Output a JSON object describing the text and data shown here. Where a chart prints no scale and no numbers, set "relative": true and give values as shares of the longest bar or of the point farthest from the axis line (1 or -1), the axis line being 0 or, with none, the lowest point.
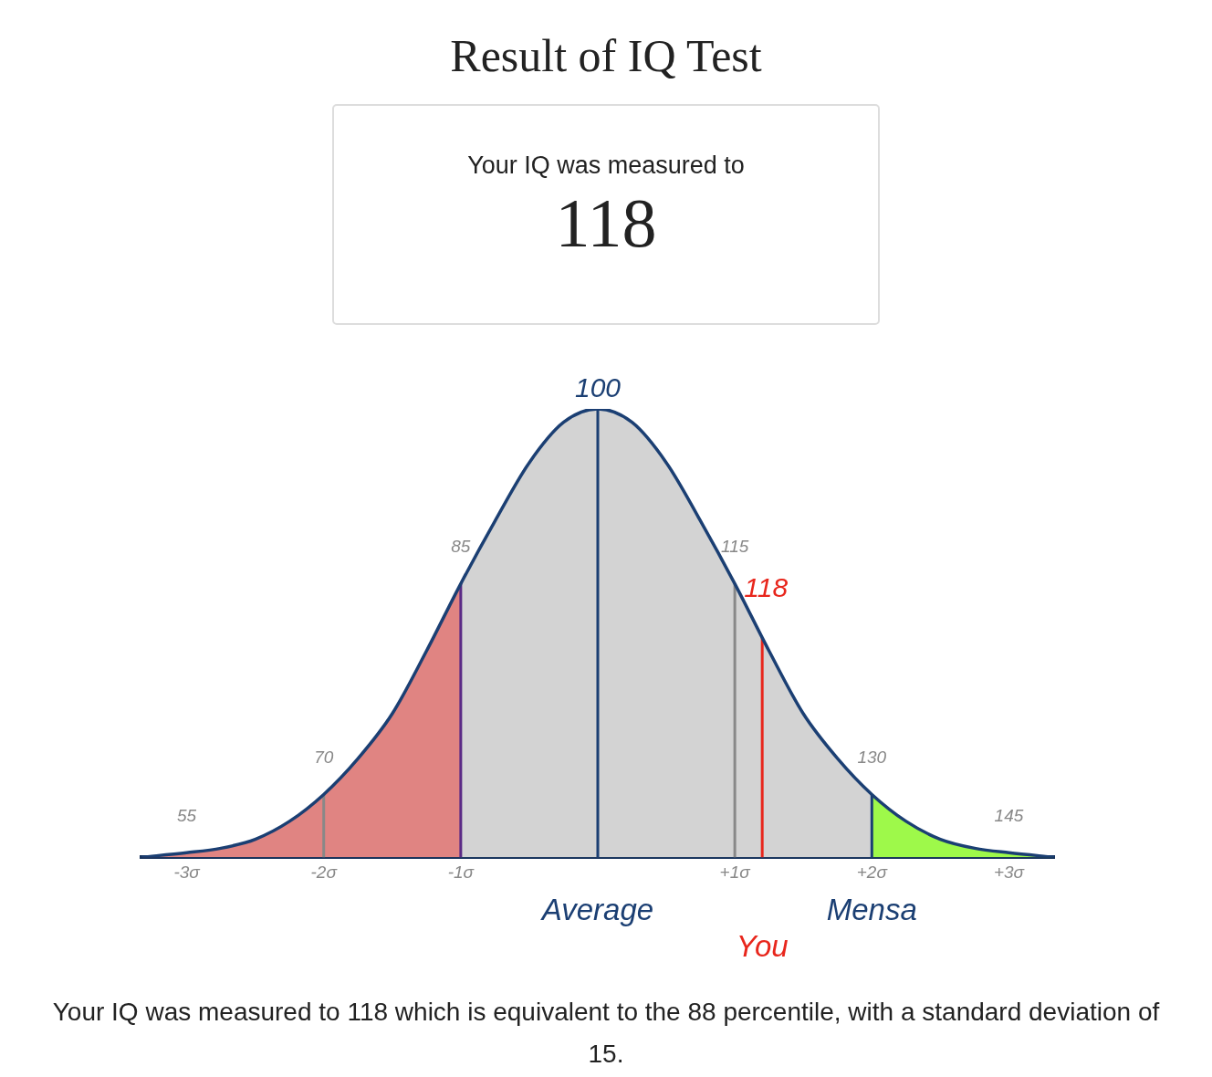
{
  "chart_data": {
    "type": "area",
    "title": "Result of IQ Test",
    "relative": true,
    "series": [
      {
        "color": "#e08482",
        "x": [
          -3.33,
          -3,
          -2.75,
          -2.5,
          -2.25,
          -2,
          -1.75,
          -1.5,
          -1.25,
          -1
        ],
        "values": [
          0,
          0.01,
          0.02,
          0.04,
          0.08,
          0.14,
          0.22,
          0.32,
          0.46,
          0.61
        ]
      },
      {
        "color": "#d3d3d3",
        "x": [
          -1,
          -0.75,
          -0.5,
          -0.25,
          0,
          0.25,
          0.5,
          0.75,
          1,
          1.25,
          1.5,
          1.75,
          2
        ],
        "values": [
          0.61,
          0.75,
          0.88,
          0.97,
          1,
          0.97,
          0.88,
          0.75,
          0.61,
          0.46,
          0.32,
          0.22,
          0.14
        ]
      },
      {
        "color": "#9ef94a",
        "x": [
          2,
          2.25,
          2.5,
          2.75,
          3,
          3.33
        ],
        "values": [
          0.14,
          0.08,
          0.04,
          0.02,
          0.01,
          0
        ]
      },
      {
        "type": "line",
        "color": "#1b3f73",
        "x": [
          -3.33,
          -3,
          -2.75,
          -2.5,
          -2.25,
          -2,
          -1.75,
          -1.5,
          -1.25,
          -1,
          -0.75,
          -0.5,
          -0.25,
          0,
          0.25,
          0.5,
          0.75,
          1,
          1.25,
          1.5,
          1.75,
          2,
          2.25,
          2.5,
          2.75,
          3,
          3.33
        ],
        "values": [
          0,
          0.01,
          0.02,
          0.04,
          0.08,
          0.14,
          0.22,
          0.32,
          0.46,
          0.61,
          0.75,
          0.88,
          0.97,
          1,
          0.97,
          0.88,
          0.75,
          0.61,
          0.46,
          0.32,
          0.22,
          0.14,
          0.08,
          0.04,
          0.02,
          0.01,
          0
        ]
      }
    ],
    "xlim": [
      -3.33,
      3.33
    ],
    "xticks": [
      {
        "value": -3,
        "label": "-3σ"
      },
      {
        "value": -2,
        "label": "-2σ"
      },
      {
        "value": -1,
        "label": "-1σ"
      },
      {
        "value": 1,
        "label": "+1σ"
      },
      {
        "value": 2,
        "label": "+2σ"
      },
      {
        "value": 3,
        "label": "+3σ"
      }
    ],
    "ref_lines": [
      {
        "axis": "x",
        "value": -2,
        "color": "#888888"
      },
      {
        "axis": "x",
        "value": -1,
        "color": "#5b2a86"
      },
      {
        "axis": "x",
        "value": 0,
        "color": "#1b3f73",
        "label": "Average"
      },
      {
        "axis": "x",
        "value": 1,
        "color": "#888888"
      },
      {
        "axis": "x",
        "value": 1.2,
        "color": "#e8261c",
        "label": "You"
      },
      {
        "axis": "x",
        "value": 2,
        "color": "#1b3f73",
        "label": "Mensa"
      }
    ],
    "annotations": [
      "Your IQ was measured to",
      "118",
      "Your IQ was measured to 118 which is equivalent to the 88 percentile, with a standard deviation of 15.",
      {
        "text": "55",
        "x": -3,
        "y": 0.01
      },
      {
        "text": "70",
        "x": -2,
        "y": 0.14
      },
      {
        "text": "85",
        "x": -1,
        "y": 0.61
      },
      {
        "text": "100",
        "x": 0,
        "y": 1
      },
      {
        "text": "115",
        "x": 1,
        "y": 0.61
      },
      {
        "text": "118",
        "x": 1.2,
        "y": 0.49
      },
      {
        "text": "130",
        "x": 2,
        "y": 0.14
      },
      {
        "text": "145",
        "x": 3,
        "y": 0.01
      }
    ]
  }
}
